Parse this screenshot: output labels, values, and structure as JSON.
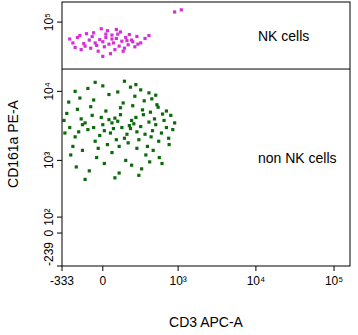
{
  "chart_data": {
    "type": "scatter",
    "xlabel": "CD3 APC-A",
    "ylabel": "CD161a PE-A",
    "log": true,
    "xlim": [
      -333,
      160000
    ],
    "ylim": [
      -239,
      195000
    ],
    "xticks": [
      -333,
      0,
      {
        "value": 1000,
        "label": "10³"
      },
      {
        "value": 10000,
        "label": "10⁴"
      },
      {
        "value": 100000,
        "label": "10⁵"
      }
    ],
    "yticks": [
      -239,
      0,
      {
        "value": 100,
        "label": "10²"
      },
      {
        "value": 1000,
        "label": "10³"
      },
      {
        "value": 10000,
        "label": "10⁴"
      },
      {
        "value": 100000,
        "label": "10⁵"
      }
    ],
    "gate": 21000,
    "series": [
      {
        "name": "NK cells",
        "color": "#d62fd6",
        "x": [
          -180,
          -120,
          -60,
          0,
          40,
          90,
          150,
          210,
          -220,
          -30,
          60,
          120,
          -90,
          20,
          180,
          260,
          -150,
          80,
          -10,
          130,
          -250,
          300,
          -70,
          50,
          100,
          -40,
          240,
          10,
          -110,
          160,
          70,
          -200,
          30,
          190,
          -20,
          110,
          350,
          -160,
          0,
          140,
          -50,
          220,
          60,
          -80,
          270,
          90,
          -130,
          20,
          170,
          400,
          900,
          1100
        ],
        "values": [
          60000,
          45000,
          70000,
          52000,
          48000,
          58000,
          42000,
          55000,
          50000,
          38000,
          65000,
          72000,
          55000,
          60000,
          47000,
          62000,
          40000,
          40000,
          80000,
          53000,
          57000,
          50000,
          62000,
          35000,
          67000,
          46000,
          44000,
          44000,
          68000,
          60000,
          50000,
          43000,
          75000,
          66000,
          56000,
          45000,
          58000,
          64000,
          32000,
          38000,
          50000,
          52000,
          57000,
          42000,
          48000,
          78000,
          49000,
          67000,
          54000,
          64000,
          140000,
          150000
        ]
      },
      {
        "name": "non NK cells",
        "color": "#0b6a0b",
        "x": [
          -250,
          -200,
          -150,
          -100,
          -50,
          0,
          50,
          100,
          150,
          200,
          250,
          300,
          350,
          400,
          450,
          500,
          600,
          700,
          -220,
          -170,
          -120,
          -70,
          -20,
          30,
          80,
          130,
          180,
          230,
          280,
          330,
          380,
          430,
          480,
          550,
          650,
          -280,
          -180,
          -80,
          20,
          120,
          220,
          320,
          420,
          520,
          620,
          -260,
          -160,
          -60,
          40,
          140,
          240,
          340,
          440,
          540,
          -200,
          -100,
          0,
          100,
          200,
          300,
          400,
          500,
          -50,
          150,
          250,
          -240,
          -140,
          -40,
          60,
          160,
          260,
          360,
          460,
          560,
          760,
          -190,
          -90,
          10,
          110,
          210,
          310,
          410,
          610,
          -120,
          80,
          280,
          -300,
          -310,
          850,
          900,
          800,
          750,
          700,
          -60,
          60,
          10,
          90,
          170,
          120,
          -10,
          40,
          190,
          70,
          -140,
          260,
          110,
          -30,
          210
        ],
        "values": [
          3000,
          2200,
          4000,
          2800,
          1900,
          3300,
          2500,
          3700,
          2100,
          2900,
          4200,
          3100,
          2400,
          3600,
          2700,
          3300,
          2500,
          3000,
          1600,
          2600,
          3500,
          4500,
          2300,
          1700,
          4100,
          3000,
          1800,
          3400,
          2000,
          4600,
          1600,
          2200,
          4000,
          1900,
          3800,
          4800,
          5500,
          6000,
          5200,
          5800,
          6200,
          5400,
          5000,
          6400,
          4700,
          7000,
          8000,
          7500,
          9000,
          6800,
          8500,
          7300,
          7800,
          5900,
          10000,
          11000,
          12000,
          9800,
          11500,
          10500,
          9500,
          8800,
          13500,
          14000,
          12500,
          1200,
          1400,
          1100,
          1300,
          1000,
          1500,
          1200,
          1400,
          1100,
          1700,
          800,
          700,
          900,
          650,
          850,
          750,
          950,
          900,
          520,
          550,
          600,
          2500,
          3800,
          2800,
          3500,
          4500,
          2100,
          5200,
          3000,
          3500,
          2700,
          2000,
          2400,
          4600,
          4200,
          3900,
          3200,
          2900,
          3300,
          2600,
          1600,
          1500,
          3800
        ]
      }
    ]
  }
}
